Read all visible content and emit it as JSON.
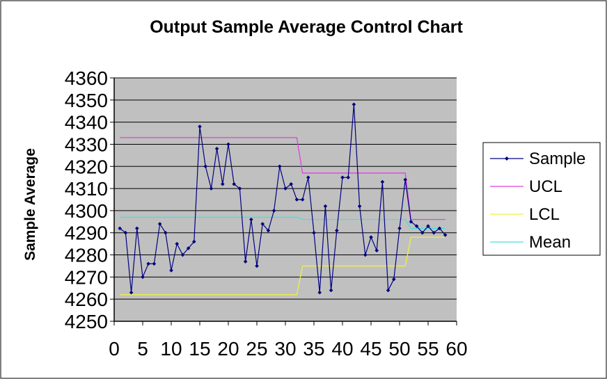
{
  "chart_data": {
    "type": "line",
    "title": "Output Sample Average Control Chart",
    "xlabel": "",
    "ylabel": "Sample Average",
    "xlim": [
      0,
      60
    ],
    "ylim": [
      4250,
      4360
    ],
    "x_ticks": [
      0,
      5,
      10,
      15,
      20,
      25,
      30,
      35,
      40,
      45,
      50,
      55,
      60
    ],
    "y_ticks": [
      4250,
      4260,
      4270,
      4280,
      4290,
      4300,
      4310,
      4320,
      4330,
      4340,
      4350,
      4360
    ],
    "grid": "horizontal",
    "legend_position": "right",
    "series": [
      {
        "name": "Sample",
        "color": "#000080",
        "markers": true,
        "x": [
          1,
          2,
          3,
          4,
          5,
          6,
          7,
          8,
          9,
          10,
          11,
          12,
          13,
          14,
          15,
          16,
          17,
          18,
          19,
          20,
          21,
          22,
          23,
          24,
          25,
          26,
          27,
          28,
          29,
          30,
          31,
          32,
          33,
          34,
          35,
          36,
          37,
          38,
          39,
          40,
          41,
          42,
          43,
          44,
          45,
          46,
          47,
          48,
          49,
          50,
          51,
          52,
          53,
          54,
          55,
          56,
          57,
          58
        ],
        "values": [
          4292,
          4290,
          4263,
          4292,
          4270,
          4276,
          4276,
          4294,
          4290,
          4273,
          4285,
          4280,
          4283,
          4286,
          4338,
          4320,
          4310,
          4328,
          4312,
          4330,
          4312,
          4310,
          4277,
          4296,
          4275,
          4294,
          4291,
          4300,
          4320,
          4310,
          4312,
          4305,
          4305,
          4315,
          4290,
          4263,
          4302,
          4264,
          4291,
          4315,
          4315,
          4348,
          4302,
          4280,
          4288,
          4282,
          4313,
          4264,
          4269,
          4292,
          4314,
          4295,
          4293,
          4290,
          4293,
          4290,
          4292,
          4289
        ]
      },
      {
        "name": "UCL",
        "color": "#e040e0",
        "markers": false,
        "x": [
          1,
          32,
          33,
          51,
          52,
          58
        ],
        "values": [
          4333,
          4333,
          4317,
          4317,
          4296,
          4296
        ]
      },
      {
        "name": "LCL",
        "color": "#f0f040",
        "markers": false,
        "x": [
          1,
          32,
          33,
          51,
          52,
          58
        ],
        "values": [
          4262,
          4262,
          4275,
          4275,
          4288,
          4288
        ]
      },
      {
        "name": "Mean",
        "color": "#40e0e0",
        "markers": false,
        "x": [
          1,
          32,
          33,
          51,
          52,
          58
        ],
        "values": [
          4297,
          4297,
          4296,
          4296,
          4292,
          4292
        ]
      }
    ]
  }
}
